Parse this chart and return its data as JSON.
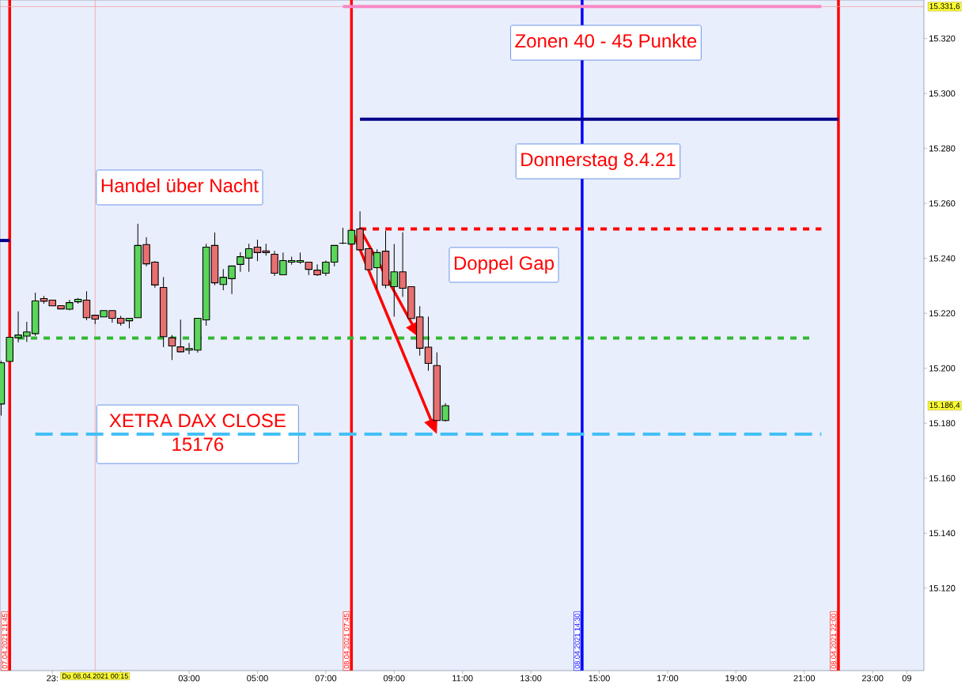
{
  "chart_data": {
    "type": "candlestick",
    "x": [
      "2021-04-07T21:30",
      "2021-04-07T21:45",
      "2021-04-07T22:00",
      "2021-04-07T22:15",
      "2021-04-07T22:30",
      "2021-04-07T22:45",
      "2021-04-07T23:00",
      "2021-04-07T23:15",
      "2021-04-07T23:30",
      "2021-04-07T23:45",
      "2021-04-08T00:00",
      "2021-04-08T00:15",
      "2021-04-08T00:30",
      "2021-04-08T00:45",
      "2021-04-08T01:00",
      "2021-04-08T01:15",
      "2021-04-08T01:30",
      "2021-04-08T01:45",
      "2021-04-08T02:00",
      "2021-04-08T02:15",
      "2021-04-08T02:30",
      "2021-04-08T02:45",
      "2021-04-08T03:00",
      "2021-04-08T03:15",
      "2021-04-08T03:30",
      "2021-04-08T03:45",
      "2021-04-08T04:00",
      "2021-04-08T04:15",
      "2021-04-08T04:30",
      "2021-04-08T04:45",
      "2021-04-08T05:00",
      "2021-04-08T05:15",
      "2021-04-08T05:30",
      "2021-04-08T05:45",
      "2021-04-08T06:00",
      "2021-04-08T06:15",
      "2021-04-08T06:30",
      "2021-04-08T06:45",
      "2021-04-08T07:00",
      "2021-04-08T07:15",
      "2021-04-08T07:30",
      "2021-04-08T07:45",
      "2021-04-08T08:00",
      "2021-04-08T08:15",
      "2021-04-08T08:30",
      "2021-04-08T08:45",
      "2021-04-08T09:00",
      "2021-04-08T09:15",
      "2021-04-08T09:30",
      "2021-04-08T09:45",
      "2021-04-08T10:00",
      "2021-04-08T10:15",
      "2021-04-08T10:30"
    ],
    "ohlc": [
      [
        15187.0,
        15202.7,
        15182.8,
        15202.0
      ],
      [
        15202.5,
        15211.3,
        15202.5,
        15211.3
      ],
      [
        15211.1,
        15220.7,
        15209.4,
        15212.1
      ],
      [
        15211.7,
        15216.9,
        15209.6,
        15213.2
      ],
      [
        15212.6,
        15227.5,
        15211.8,
        15224.5
      ],
      [
        15225.4,
        15226.3,
        15223.5,
        15224.4
      ],
      [
        15224.8,
        15224.8,
        15222.7,
        15222.7
      ],
      [
        15222.8,
        15222.8,
        15221.6,
        15221.6
      ],
      [
        15221.5,
        15224.9,
        15221.1,
        15223.9
      ],
      [
        15224.2,
        15225.6,
        15223.5,
        15225.1
      ],
      [
        15224.8,
        15228.0,
        15217.5,
        15218.4
      ],
      [
        15219.3,
        15219.3,
        15216.1,
        15217.9
      ],
      [
        15218.7,
        15221.0,
        15218.7,
        15221.0
      ],
      [
        15221.0,
        15221.0,
        15216.6,
        15218.2
      ],
      [
        15218.2,
        15219.1,
        15215.5,
        15216.4
      ],
      [
        15217.3,
        15218.2,
        15214.5,
        15218.2
      ],
      [
        15218.4,
        15252.6,
        15218.4,
        15244.7
      ],
      [
        15245.0,
        15247.7,
        15237.1,
        15238.0
      ],
      [
        15238.6,
        15239.0,
        15229.3,
        15230.3
      ],
      [
        15229.4,
        15233.2,
        15207.7,
        15211.5
      ],
      [
        15211.1,
        15212.1,
        15203.0,
        15208.1
      ],
      [
        15207.8,
        15217.7,
        15205.8,
        15206.0
      ],
      [
        15206.6,
        15209.2,
        15205.1,
        15207.2
      ],
      [
        15206.6,
        15218.2,
        15205.7,
        15218.2
      ],
      [
        15217.6,
        15245.3,
        15215.5,
        15244.1
      ],
      [
        15244.7,
        15249.4,
        15230.2,
        15231.1
      ],
      [
        15230.5,
        15236.1,
        15228.4,
        15233.1
      ],
      [
        15232.6,
        15237.2,
        15227.0,
        15237.2
      ],
      [
        15237.8,
        15242.2,
        15235.1,
        15240.6
      ],
      [
        15240.1,
        15245.3,
        15235.1,
        15243.5
      ],
      [
        15244.1,
        15246.8,
        15239.0,
        15242.1
      ],
      [
        15242.7,
        15245.3,
        15241.0,
        15242.1
      ],
      [
        15241.5,
        15242.7,
        15233.6,
        15234.6
      ],
      [
        15234.0,
        15242.1,
        15234.0,
        15239.2
      ],
      [
        15238.6,
        15240.6,
        15237.7,
        15239.2
      ],
      [
        15238.6,
        15242.1,
        15238.0,
        15239.2
      ],
      [
        15238.6,
        15238.6,
        15233.9,
        15236.0
      ],
      [
        15235.7,
        15237.8,
        15233.6,
        15234.0
      ],
      [
        15234.6,
        15239.2,
        15233.6,
        15238.6
      ],
      [
        15238.6,
        15244.7,
        15237.1,
        15244.7
      ],
      [
        15245.5,
        15251.1,
        15245.2,
        15245.5
      ],
      [
        15245.2,
        15250.5,
        15245.2,
        15250.2
      ],
      [
        15250.7,
        15257.1,
        15243.1,
        15243.1
      ],
      [
        15243.5,
        15243.5,
        15235.9,
        15235.9
      ],
      [
        15236.6,
        15243.3,
        15228.9,
        15242.1
      ],
      [
        15242.6,
        15250.0,
        15229.1,
        15230.2
      ],
      [
        15229.7,
        15245.2,
        15218.8,
        15235.1
      ],
      [
        15235.1,
        15249.5,
        15226.0,
        15229.1
      ],
      [
        15229.7,
        15229.7,
        15218.1,
        15218.1
      ],
      [
        15218.7,
        15222.6,
        15204.6,
        15207.3
      ],
      [
        15207.7,
        15218.8,
        15199.1,
        15201.8
      ],
      [
        15201.0,
        15205.8,
        15181.0,
        15181.0
      ],
      [
        15181.0,
        15187.3,
        15180.6,
        15186.4
      ]
    ],
    "colors": [
      "#5ad65a",
      "#5ad65a",
      "#5ad65a",
      "#5ad65a",
      "#5ad65a",
      "#e87070",
      "#e87070",
      "#e87070",
      "#5ad65a",
      "#5ad65a",
      "#e87070",
      "#e87070",
      "#5ad65a",
      "#e87070",
      "#e87070",
      "#5ad65a",
      "#5ad65a",
      "#e87070",
      "#e87070",
      "#e87070",
      "#e87070",
      "#e87070",
      "#5ad65a",
      "#5ad65a",
      "#5ad65a",
      "#e87070",
      "#5ad65a",
      "#5ad65a",
      "#5ad65a",
      "#5ad65a",
      "#e87070",
      "#e87070",
      "#e87070",
      "#5ad65a",
      "#5ad65a",
      "#5ad65a",
      "#e87070",
      "#e87070",
      "#5ad65a",
      "#5ad65a",
      "#000000",
      "#5ad65a",
      "#e87070",
      "#e87070",
      "#5ad65a",
      "#e87070",
      "#5ad65a",
      "#e87070",
      "#e87070",
      "#e87070",
      "#e87070",
      "#e87070",
      "#5ad65a"
    ],
    "series": [
      {
        "type": "line",
        "x": [
          "2021-04-08T07:30",
          "2021-04-08T21:30"
        ],
        "values": [
          15331.6,
          15331.6
        ],
        "color": "#f987c5"
      },
      {
        "type": "line",
        "x": [
          "2021-04-08T08:00",
          "2021-04-08T22:00"
        ],
        "values": [
          15290.6,
          15290.6
        ],
        "color": "#00008b"
      },
      {
        "type": "line",
        "x": [
          "2021-04-07T21:28",
          "2021-04-07T21:45"
        ],
        "values": [
          15246.5,
          15246.5
        ],
        "color": "#00008b"
      },
      {
        "type": "line",
        "x": [
          "2021-04-08T08:00",
          "2021-04-08T21:30"
        ],
        "values": [
          15250.7,
          15250.7
        ],
        "color": "#ff0000",
        "line_style": "dotted"
      },
      {
        "type": "line",
        "x": [
          "2021-04-07T22:00",
          "2021-04-08T21:15"
        ],
        "values": [
          15211,
          15211
        ],
        "color": "#33b833",
        "line_style": "dotted"
      },
      {
        "type": "line",
        "x": [
          "2021-04-07T22:30",
          "2021-04-08T21:30"
        ],
        "values": [
          15176,
          15176
        ],
        "color": "#44c0f5",
        "line_style": "dashed"
      }
    ],
    "ref_lines": [
      {
        "axis": "x",
        "value": "2021-04-07T21:45",
        "label": "07.04.2021 21:45",
        "color": "#ff0000"
      },
      {
        "axis": "x",
        "value": "2021-04-08T07:45",
        "label": "08.04.2021 07:45",
        "color": "#ff0000"
      },
      {
        "axis": "x",
        "value": "2021-04-08T14:30",
        "label": "08.04.2021 14:30",
        "color": "#0000ff"
      },
      {
        "axis": "x",
        "value": "2021-04-08T22:00",
        "label": "08.04.2021 22:00",
        "color": "#ff0000"
      },
      {
        "axis": "x",
        "value": "2021-04-08T00:15",
        "color": "#f4a0a0"
      },
      {
        "axis": "y",
        "value": 15331.6,
        "color": "#f4a0a0"
      }
    ],
    "annotations": [
      "Zonen 40 - 45 Punkte",
      "Donnerstag 8.4.21",
      "Handel über Nacht",
      "Doppel Gap",
      {
        "text": "XETRA DAX CLOSE 15176",
        "x": "2021-04-08T03:15",
        "y": 15176
      },
      "Do 08.04.2021 00:15",
      "15.331,6",
      "15.186,4"
    ],
    "xlim": [
      "2021-04-07T21:28",
      "2021-04-09T00:30"
    ],
    "ylim": [
      15090,
      15334
    ],
    "xticks": [
      {
        "value": "2021-04-07T23:00",
        "label": "23:"
      },
      {
        "value": "2021-04-08T01:00",
        "label": null
      },
      {
        "value": "2021-04-08T03:00",
        "label": "03:00"
      },
      {
        "value": "2021-04-08T05:00",
        "label": "05:00"
      },
      {
        "value": "2021-04-08T07:00",
        "label": "07:00"
      },
      {
        "value": "2021-04-08T09:00",
        "label": "09:00"
      },
      {
        "value": "2021-04-08T11:00",
        "label": "11:00"
      },
      {
        "value": "2021-04-08T13:00",
        "label": "13:00"
      },
      {
        "value": "2021-04-08T15:00",
        "label": "15:00"
      },
      {
        "value": "2021-04-08T17:00",
        "label": "17:00"
      },
      {
        "value": "2021-04-08T19:00",
        "label": "19:00"
      },
      {
        "value": "2021-04-08T21:00",
        "label": "21:00"
      },
      {
        "value": "2021-04-08T23:00",
        "label": "23:00"
      },
      {
        "value": "2021-04-09T00:00",
        "label": "09"
      }
    ],
    "yticks": [
      {
        "value": 15120,
        "label": "15.120"
      },
      {
        "value": 15140,
        "label": "15.140"
      },
      {
        "value": 15160,
        "label": "15.160"
      },
      {
        "value": 15180,
        "label": "15.180"
      },
      {
        "value": 15200,
        "label": "15.200"
      },
      {
        "value": 15220,
        "label": "15.220"
      },
      {
        "value": 15240,
        "label": "15.240"
      },
      {
        "value": 15260,
        "label": "15.260"
      },
      {
        "value": 15280,
        "label": "15.280"
      },
      {
        "value": 15300,
        "label": "15.300"
      },
      {
        "value": 15320,
        "label": "15.320"
      }
    ]
  }
}
